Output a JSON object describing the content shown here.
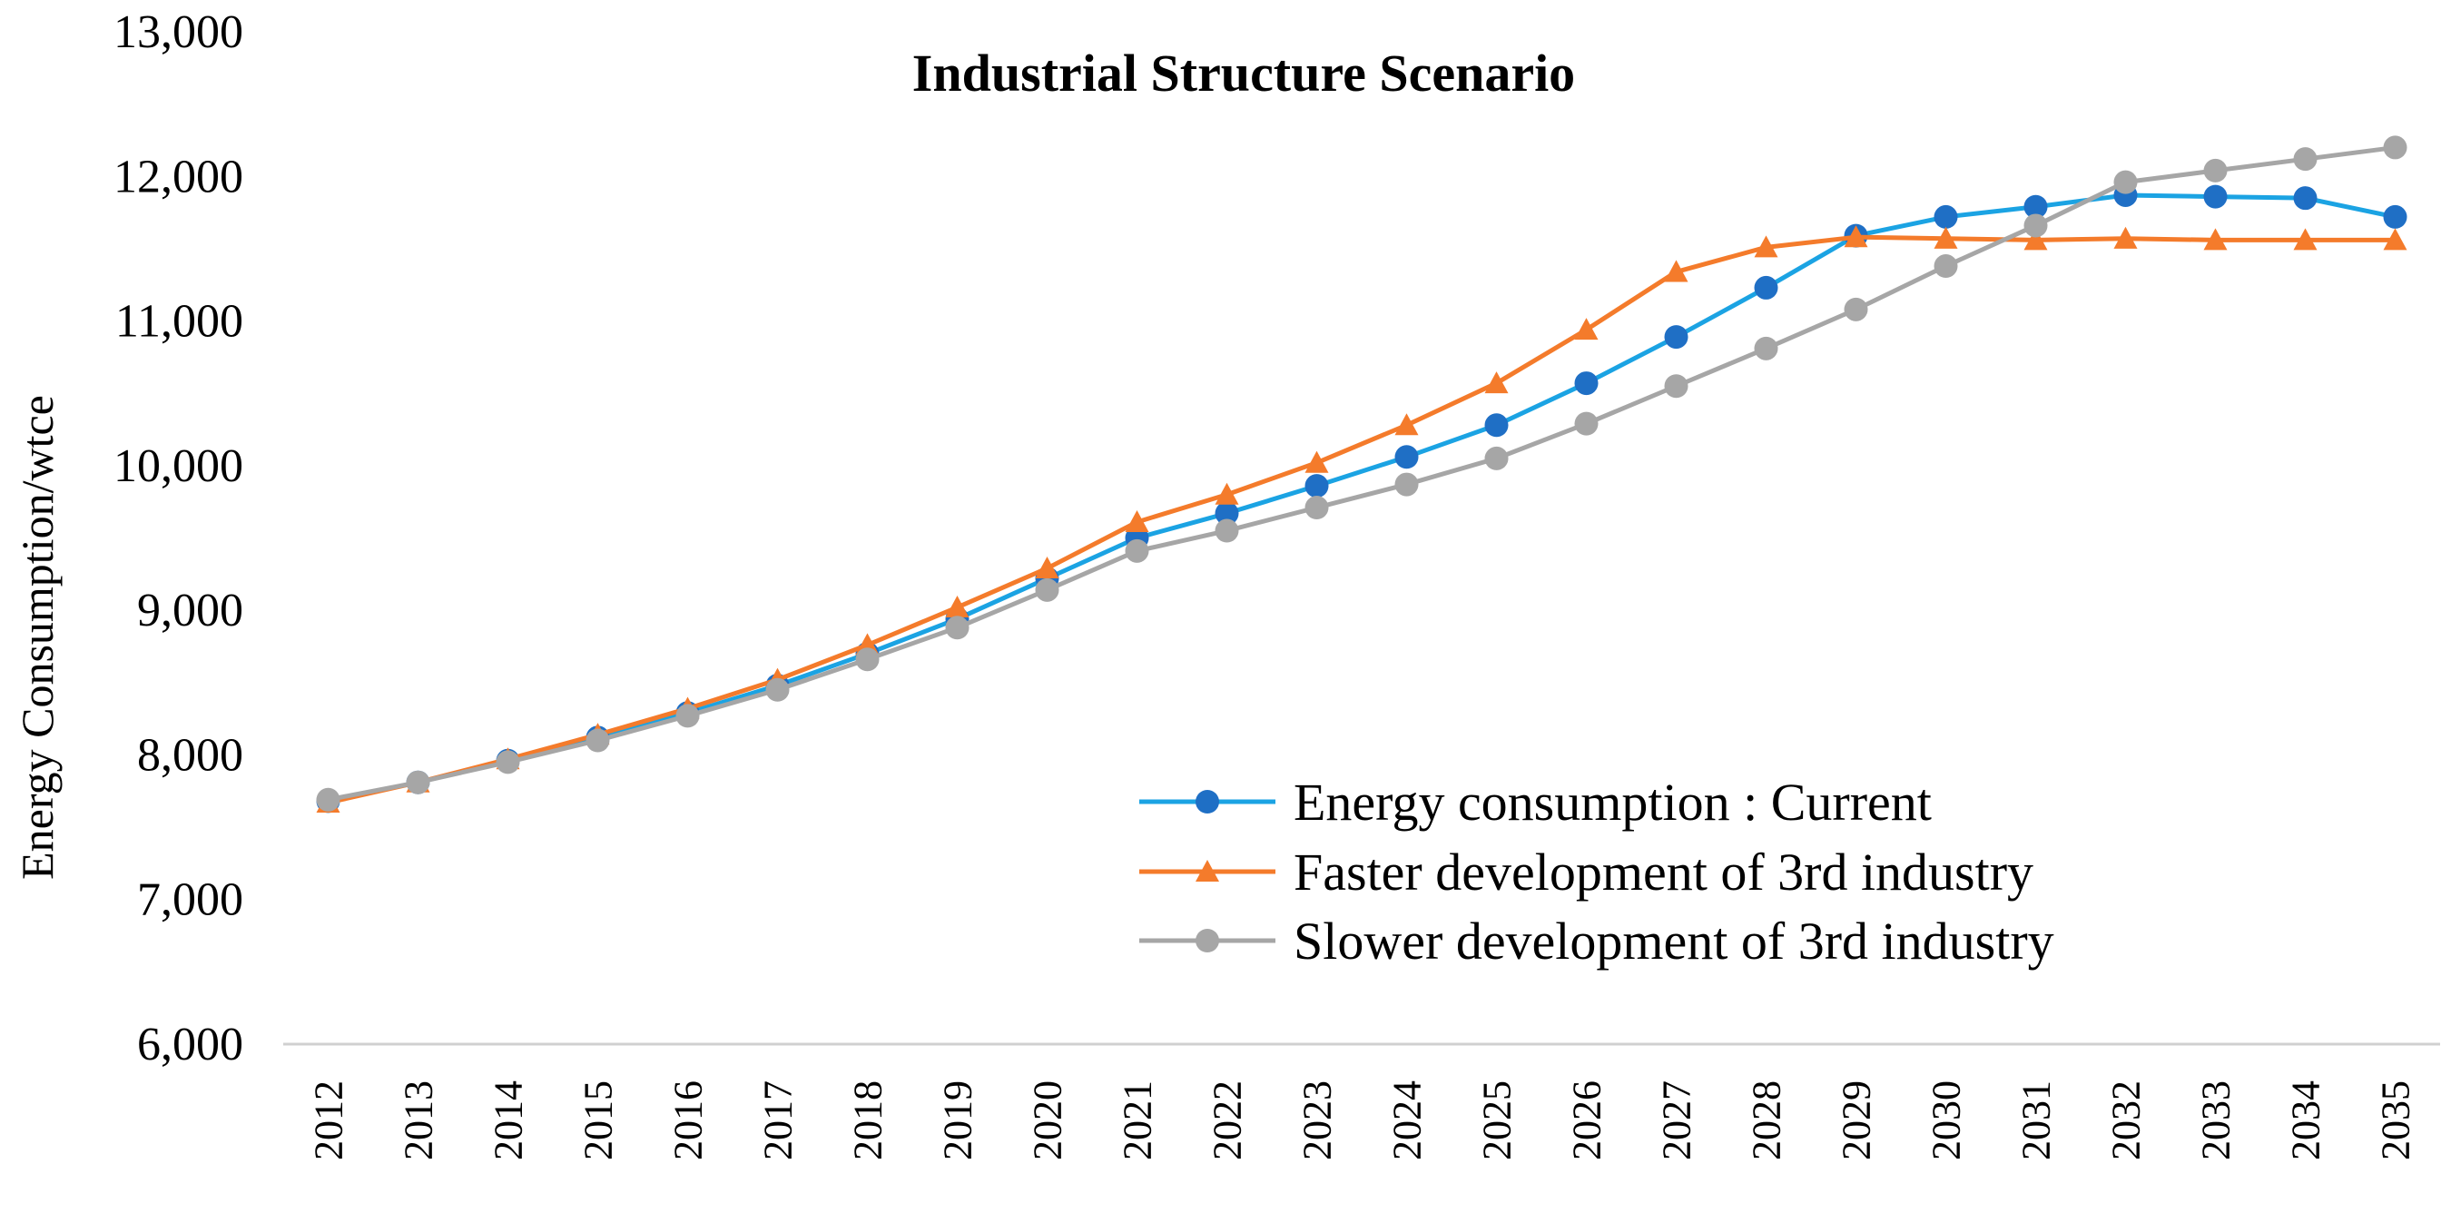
{
  "chart_data": {
    "type": "line",
    "title": "Industrial Structure Scenario",
    "xlabel": "",
    "ylabel": "Energy Consumption/wtce",
    "ylim": [
      6000,
      13000
    ],
    "yticks": [
      "6,000",
      "7,000",
      "8,000",
      "9,000",
      "10,000",
      "11,000",
      "12,000",
      "13,000"
    ],
    "ytick_values": [
      6000,
      7000,
      8000,
      9000,
      10000,
      11000,
      12000,
      13000
    ],
    "grid": false,
    "legend_position": "lower-right",
    "categories": [
      "2012",
      "2013",
      "2014",
      "2015",
      "2016",
      "2017",
      "2018",
      "2019",
      "2020",
      "2021",
      "2022",
      "2023",
      "2024",
      "2025",
      "2026",
      "2027",
      "2028",
      "2029",
      "2030",
      "2031",
      "2032",
      "2033",
      "2034",
      "2035"
    ],
    "series": [
      {
        "name": "Energy consumption : Current",
        "color": "#1ba3e3",
        "marker_color": "#1f6fc5",
        "marker": "circle",
        "values": [
          7680,
          7810,
          7960,
          8120,
          8290,
          8480,
          8700,
          8940,
          9220,
          9500,
          9670,
          9860,
          10060,
          10280,
          10570,
          10890,
          11230,
          11590,
          11720,
          11790,
          11870,
          11860,
          11850,
          11720
        ]
      },
      {
        "name": "Faster development of 3rd industry",
        "color": "#f47b2b",
        "marker_color": "#f47b2b",
        "marker": "triangle",
        "values": [
          7670,
          7810,
          7970,
          8140,
          8320,
          8520,
          8760,
          9020,
          9290,
          9610,
          9800,
          10020,
          10280,
          10570,
          10940,
          11340,
          11510,
          11580,
          11570,
          11560,
          11570,
          11560,
          11560,
          11560
        ]
      },
      {
        "name": "Slower development of 3rd industry",
        "color": "#a6a6a6",
        "marker_color": "#a6a6a6",
        "marker": "circle",
        "values": [
          7690,
          7810,
          7950,
          8100,
          8270,
          8450,
          8660,
          8880,
          9140,
          9410,
          9550,
          9710,
          9870,
          10050,
          10290,
          10550,
          10810,
          11080,
          11380,
          11660,
          11960,
          12040,
          12120,
          12200
        ]
      }
    ]
  }
}
